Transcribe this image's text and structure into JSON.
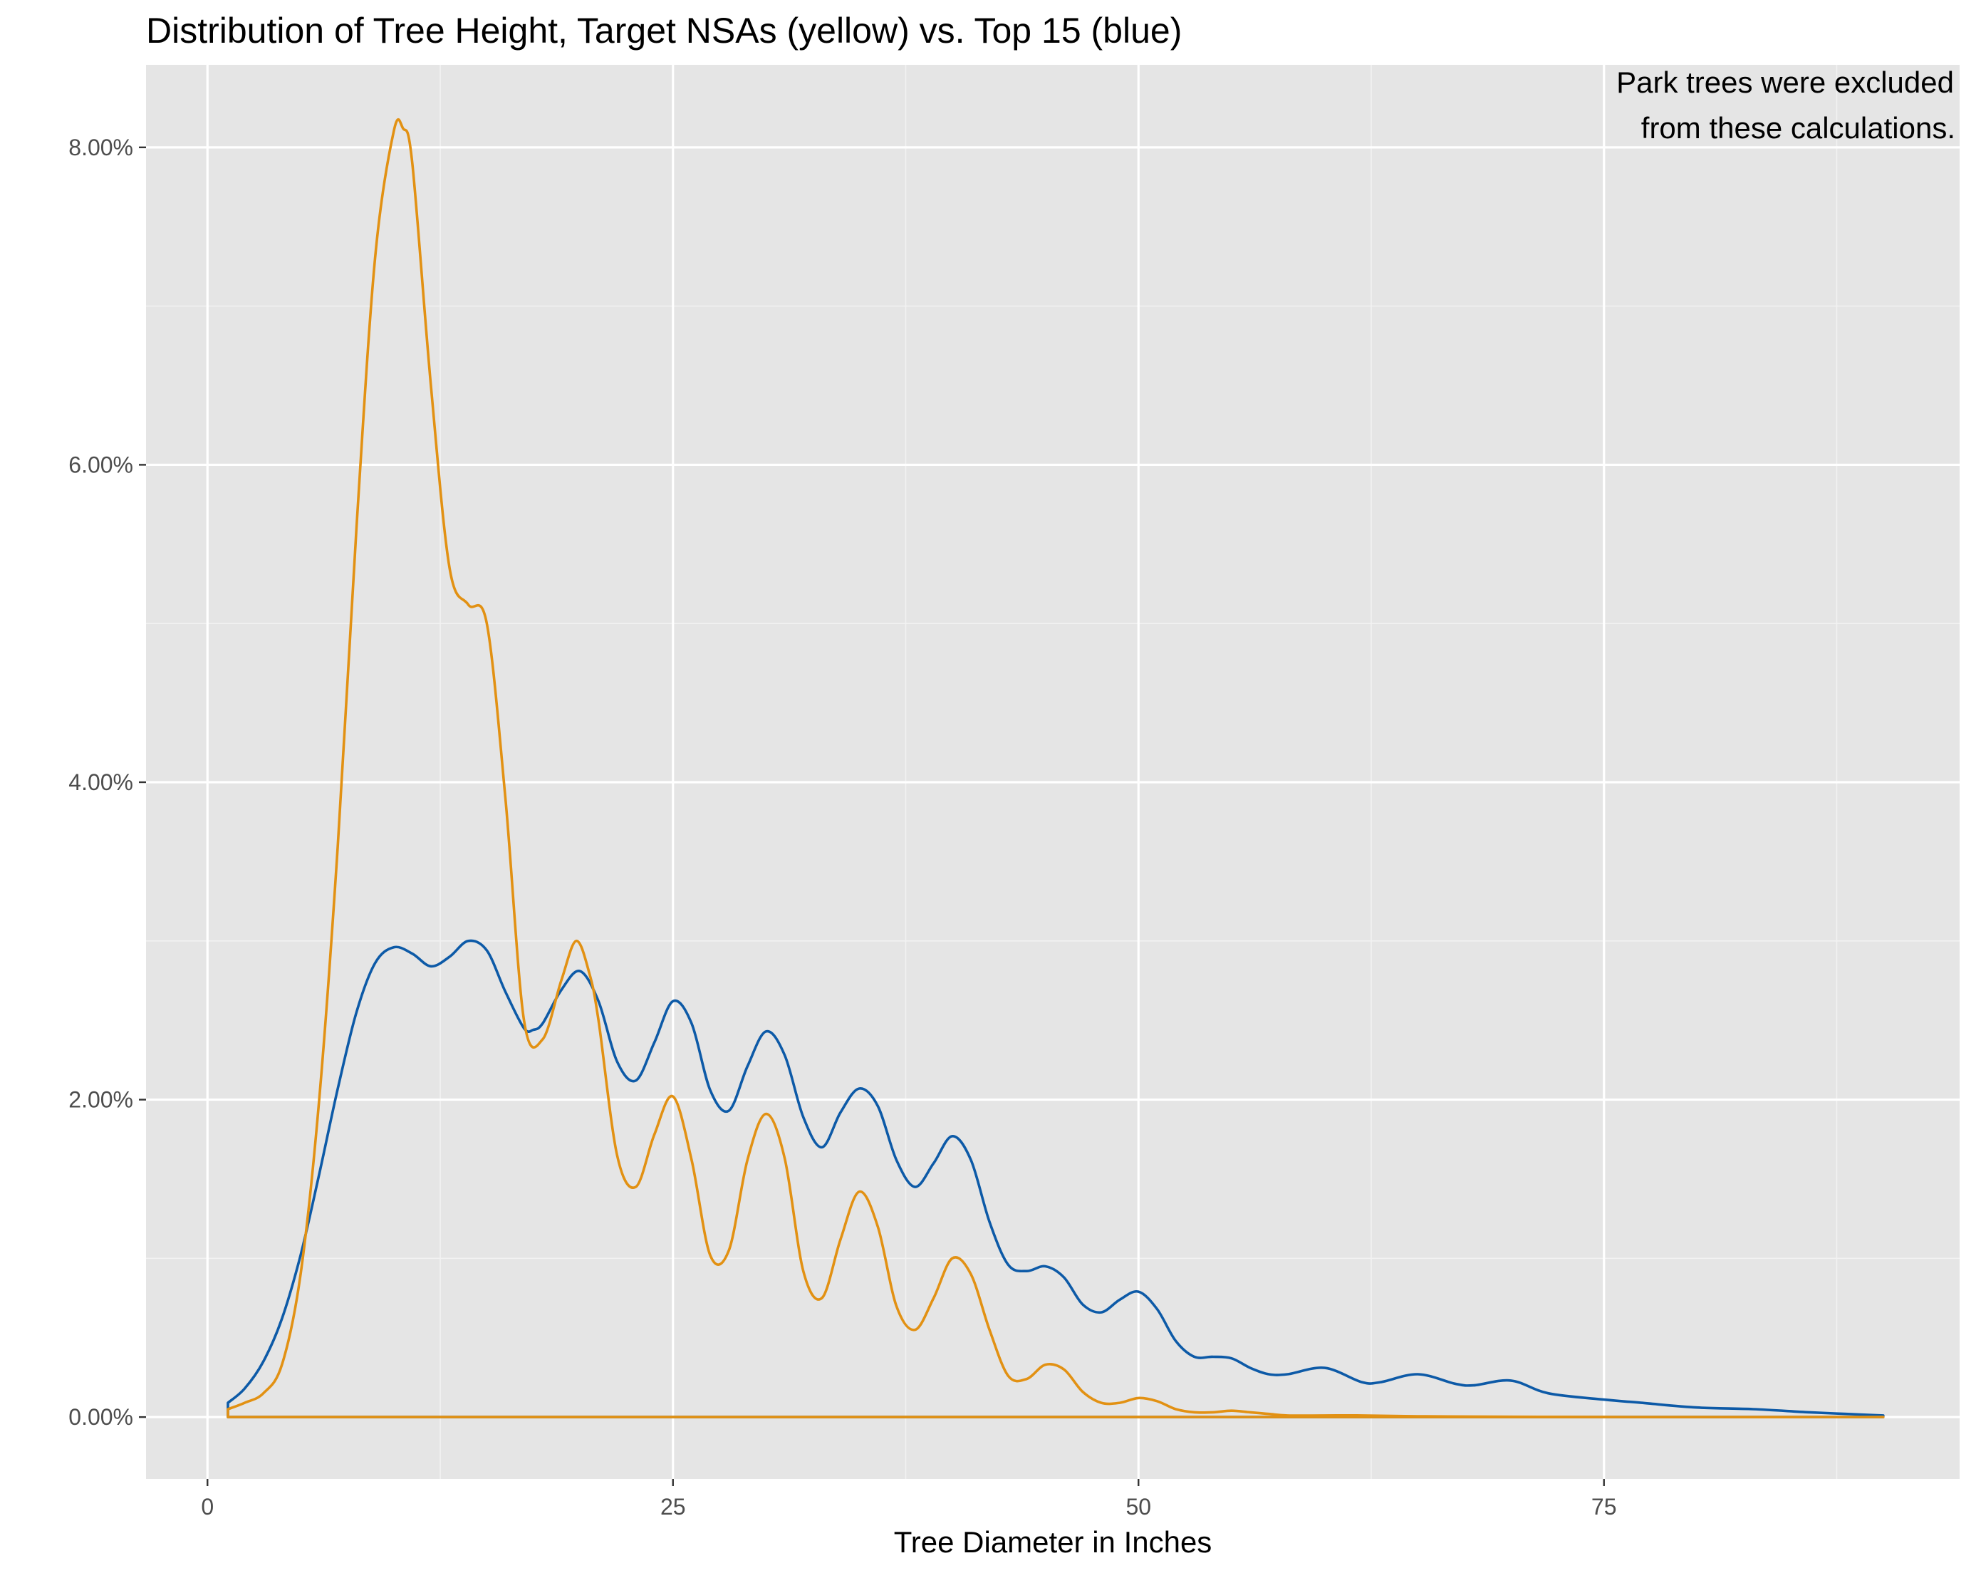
{
  "chart_data": {
    "type": "line",
    "title": "Distribution of Tree Height, Target NSAs (yellow) vs. Top 15 (blue)",
    "annotation": [
      "Park trees were excluded",
      "from these calculations."
    ],
    "xlabel": "Tree Diameter in Inches",
    "ylabel": "",
    "xlim": [
      -3.3,
      94.1
    ],
    "ylim": [
      -0.0039,
      0.0852
    ],
    "x_ticks": [
      0,
      25,
      50,
      75
    ],
    "x_tick_labels": [
      "0",
      "25",
      "50",
      "75"
    ],
    "y_ticks": [
      0,
      0.02,
      0.04,
      0.06,
      0.08
    ],
    "y_tick_labels": [
      "0.00%",
      "2.00%",
      "4.00%",
      "6.00%",
      "8.00%"
    ],
    "grid": true,
    "legend": "none",
    "series": [
      {
        "color": "#0d5aa7",
        "x": [
          1.1,
          2,
          3,
          4,
          5,
          6,
          7,
          8,
          9,
          10,
          11,
          12,
          13,
          14,
          15,
          16,
          17,
          17.5,
          18,
          19,
          20,
          21,
          22,
          23,
          24,
          25,
          26,
          27,
          28,
          29,
          30,
          31,
          32,
          33,
          34,
          35,
          36,
          37,
          38,
          39,
          40,
          41,
          42,
          43,
          44,
          45,
          46,
          47,
          48,
          49,
          50,
          51,
          52,
          53,
          54,
          55,
          56,
          57,
          58,
          60,
          62,
          63,
          65,
          67,
          68,
          70,
          72,
          75,
          77,
          80,
          83,
          86,
          88,
          90
        ],
        "y": [
          0.0009,
          0.0018,
          0.0035,
          0.0062,
          0.0102,
          0.0153,
          0.0207,
          0.0255,
          0.0286,
          0.0296,
          0.0292,
          0.0284,
          0.029,
          0.03,
          0.0294,
          0.0268,
          0.0245,
          0.0244,
          0.0248,
          0.0269,
          0.0281,
          0.0262,
          0.0224,
          0.0212,
          0.0236,
          0.0262,
          0.0248,
          0.0206,
          0.0193,
          0.0221,
          0.0243,
          0.0228,
          0.0189,
          0.017,
          0.0192,
          0.0207,
          0.0196,
          0.0162,
          0.0145,
          0.016,
          0.0177,
          0.0162,
          0.0123,
          0.0096,
          0.0092,
          0.0095,
          0.0088,
          0.0071,
          0.0066,
          0.0074,
          0.0079,
          0.0068,
          0.0048,
          0.0038,
          0.0038,
          0.0037,
          0.0031,
          0.0027,
          0.0027,
          0.0031,
          0.0022,
          0.0022,
          0.0027,
          0.0021,
          0.002,
          0.0023,
          0.0015,
          0.0011,
          0.0009,
          0.0006,
          0.0005,
          0.0003,
          0.0002,
          0.0001
        ]
      },
      {
        "color": "#e29113",
        "x": [
          1.1,
          2,
          3,
          4,
          5,
          6,
          7,
          8,
          9,
          10,
          10.5,
          11,
          12,
          13,
          14,
          15,
          16,
          17,
          18,
          19,
          19.8,
          20.5,
          21,
          22,
          23,
          24,
          25,
          26,
          27,
          28,
          29,
          30,
          31,
          32,
          33,
          34,
          35,
          36,
          37,
          38,
          39,
          40,
          41,
          42,
          43,
          44,
          45,
          46,
          47,
          48,
          49,
          50,
          51,
          52,
          53,
          54,
          55,
          56,
          57,
          58,
          60,
          62,
          65,
          70,
          80,
          90
        ],
        "y": [
          0.0005,
          0.0009,
          0.0015,
          0.0033,
          0.009,
          0.02,
          0.036,
          0.056,
          0.073,
          0.081,
          0.0812,
          0.079,
          0.065,
          0.0535,
          0.0512,
          0.05,
          0.039,
          0.025,
          0.0238,
          0.0275,
          0.03,
          0.028,
          0.025,
          0.0165,
          0.0145,
          0.0178,
          0.0202,
          0.0162,
          0.0102,
          0.0105,
          0.0162,
          0.0191,
          0.0163,
          0.0092,
          0.0075,
          0.0112,
          0.0142,
          0.012,
          0.007,
          0.0055,
          0.0075,
          0.01,
          0.009,
          0.0055,
          0.0026,
          0.0024,
          0.0033,
          0.003,
          0.0016,
          0.0009,
          0.0009,
          0.0012,
          0.001,
          0.0005,
          0.0003,
          0.0003,
          0.0004,
          0.0003,
          0.0002,
          0.0001,
          0.0001,
          0.0001,
          5e-05,
          2e-05,
          0,
          0
        ]
      }
    ]
  }
}
